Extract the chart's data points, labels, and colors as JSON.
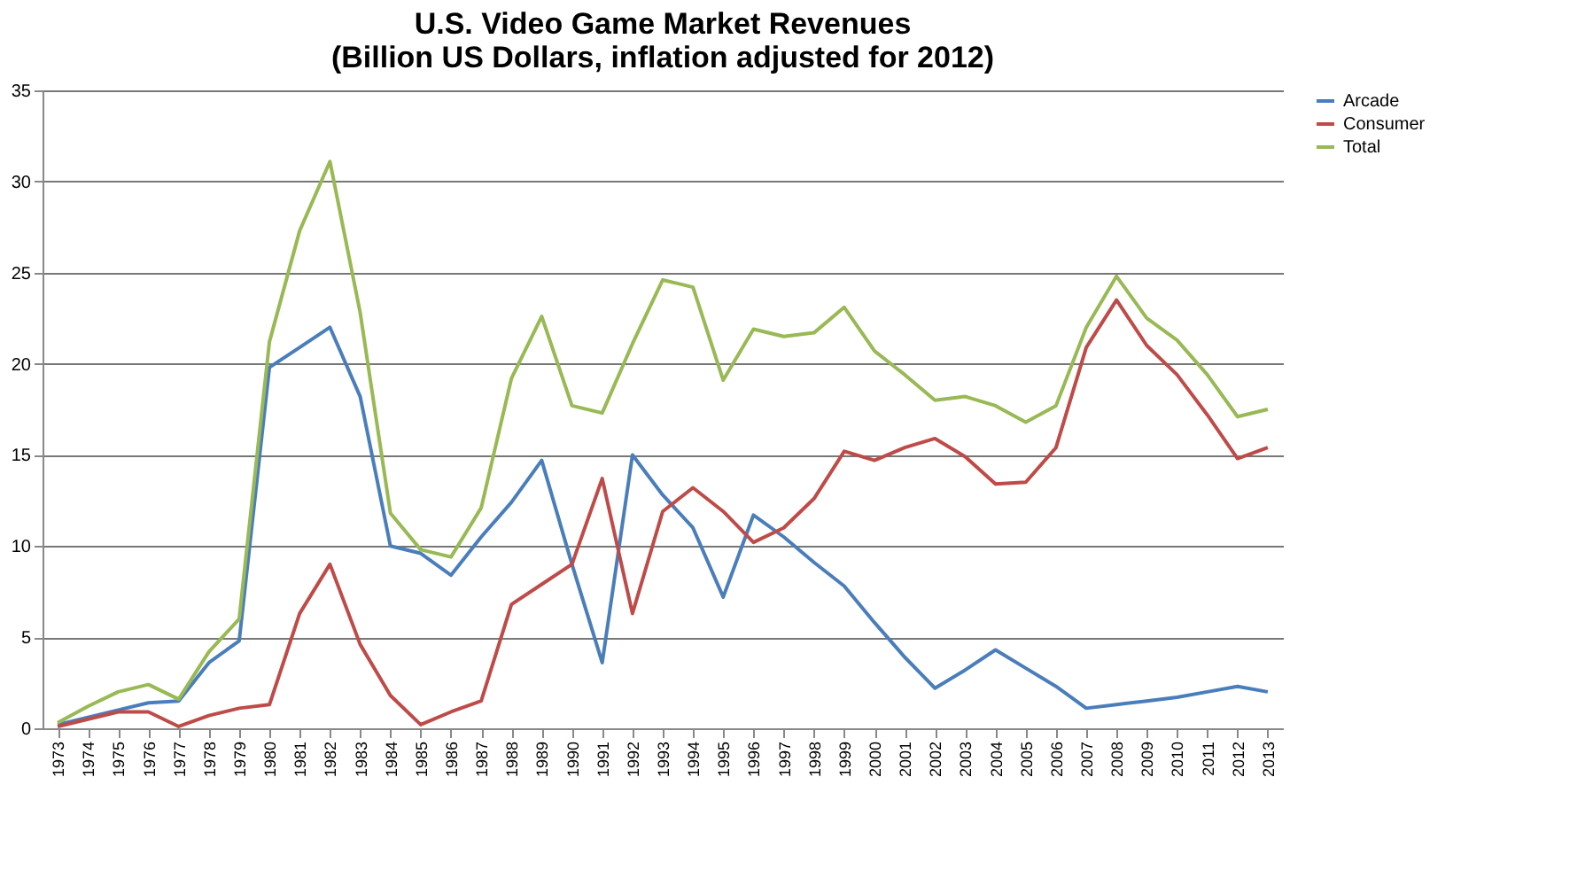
{
  "chart_data": {
    "type": "line",
    "title": [
      "U.S. Video Game Market Revenues",
      "(Billion US Dollars, inflation adjusted for 2012)"
    ],
    "categories": [
      "1973",
      "1974",
      "1975",
      "1976",
      "1977",
      "1978",
      "1979",
      "1980",
      "1981",
      "1982",
      "1983",
      "1984",
      "1985",
      "1986",
      "1987",
      "1988",
      "1989",
      "1990",
      "1991",
      "1992",
      "1993",
      "1994",
      "1995",
      "1996",
      "1997",
      "1998",
      "1999",
      "2000",
      "2001",
      "2002",
      "2003",
      "2004",
      "2005",
      "2006",
      "2007",
      "2008",
      "2009",
      "2010",
      "2011",
      "2012",
      "2013"
    ],
    "series": [
      {
        "name": "Arcade",
        "color": "#4a7ebb",
        "values": [
          0.2,
          0.6,
          1.0,
          1.4,
          1.5,
          3.6,
          4.8,
          19.8,
          20.9,
          22.0,
          18.2,
          10.0,
          9.6,
          8.4,
          10.5,
          12.4,
          14.7,
          9.0,
          3.6,
          15.0,
          12.8,
          11.0,
          7.2,
          11.7,
          10.5,
          9.1,
          7.8,
          5.8,
          3.9,
          2.2,
          3.2,
          4.3,
          3.3,
          2.3,
          1.1,
          1.3,
          1.5,
          1.7,
          2.0,
          2.3,
          2.0
        ]
      },
      {
        "name": "Consumer",
        "color": "#be4b48",
        "values": [
          0.1,
          0.5,
          0.9,
          0.9,
          0.1,
          0.7,
          1.1,
          1.3,
          6.3,
          9.0,
          4.6,
          1.8,
          0.2,
          0.9,
          1.5,
          6.8,
          7.9,
          9.0,
          13.7,
          6.3,
          11.9,
          13.2,
          11.9,
          10.2,
          11.0,
          12.6,
          15.2,
          14.7,
          15.4,
          15.9,
          14.9,
          13.4,
          13.5,
          15.4,
          20.9,
          23.5,
          21.0,
          19.4,
          17.2,
          14.8,
          15.4
        ]
      },
      {
        "name": "Total",
        "color": "#98b954",
        "values": [
          0.3,
          1.2,
          2.0,
          2.4,
          1.6,
          4.2,
          6.0,
          21.2,
          27.3,
          31.1,
          22.8,
          11.8,
          9.8,
          9.4,
          12.1,
          19.2,
          22.6,
          17.7,
          17.3,
          21.1,
          24.6,
          24.2,
          19.1,
          21.9,
          21.5,
          21.7,
          23.1,
          20.7,
          19.4,
          18.0,
          18.2,
          17.7,
          16.8,
          17.7,
          22.0,
          24.8,
          22.5,
          21.3,
          19.4,
          17.1,
          17.5
        ]
      }
    ],
    "ylim": [
      0,
      35
    ],
    "yticks": [
      0,
      5,
      10,
      15,
      20,
      25,
      30,
      35
    ],
    "grid": "y",
    "legend": "right",
    "marker": "none",
    "line_style": "solid"
  }
}
